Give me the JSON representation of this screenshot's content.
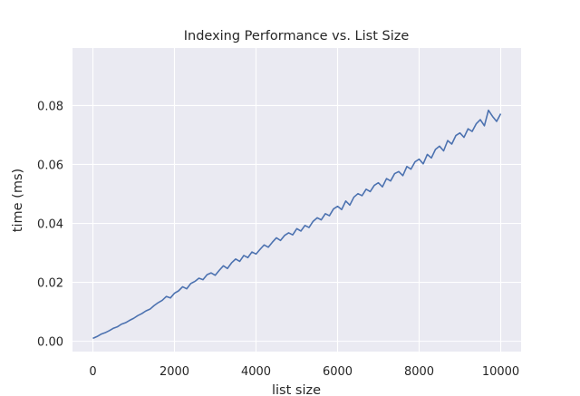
{
  "chart_data": {
    "type": "line",
    "title": "Indexing Performance vs. List Size",
    "xlabel": "list size",
    "ylabel": "time (ms)",
    "xlim": [
      -500,
      10500
    ],
    "ylim": [
      -0.0035,
      0.0995
    ],
    "xticks": [
      0,
      2000,
      4000,
      6000,
      8000,
      10000
    ],
    "xtick_labels": [
      "0",
      "2000",
      "4000",
      "6000",
      "8000",
      "10000"
    ],
    "yticks": [
      0.0,
      0.02,
      0.04,
      0.06,
      0.08
    ],
    "ytick_labels": [
      "0.00",
      "0.02",
      "0.04",
      "0.06",
      "0.08"
    ],
    "grid": true,
    "legend": false,
    "colors": {
      "line": "#4c72b0",
      "plot_background": "#eaeaf2",
      "grid": "#ffffff"
    },
    "series": [
      {
        "x": [
          0,
          100,
          200,
          300,
          400,
          500,
          600,
          700,
          800,
          900,
          1000,
          1100,
          1200,
          1300,
          1400,
          1500,
          1600,
          1700,
          1800,
          1900,
          2000,
          2100,
          2200,
          2300,
          2400,
          2500,
          2600,
          2700,
          2800,
          2900,
          3000,
          3100,
          3200,
          3300,
          3400,
          3500,
          3600,
          3700,
          3800,
          3900,
          4000,
          4100,
          4200,
          4300,
          4400,
          4500,
          4600,
          4700,
          4800,
          4900,
          5000,
          5100,
          5200,
          5300,
          5400,
          5500,
          5600,
          5700,
          5800,
          5900,
          6000,
          6100,
          6200,
          6300,
          6400,
          6500,
          6600,
          6700,
          6800,
          6900,
          7000,
          7100,
          7200,
          7300,
          7400,
          7500,
          7600,
          7700,
          7800,
          7900,
          8000,
          8100,
          8200,
          8300,
          8400,
          8500,
          8600,
          8700,
          8800,
          8900,
          9000,
          9100,
          9200,
          9300,
          9400,
          9500,
          9600,
          9700,
          9800,
          9900,
          10000
        ],
        "values": [
          0.001,
          0.0016,
          0.0024,
          0.0029,
          0.0036,
          0.0044,
          0.0049,
          0.0058,
          0.0063,
          0.0071,
          0.0078,
          0.0087,
          0.0094,
          0.0103,
          0.0109,
          0.0121,
          0.0131,
          0.0139,
          0.0152,
          0.0147,
          0.0163,
          0.0171,
          0.0185,
          0.0178,
          0.0196,
          0.0203,
          0.0214,
          0.0209,
          0.0226,
          0.0232,
          0.0224,
          0.0241,
          0.0256,
          0.0247,
          0.0266,
          0.0279,
          0.0271,
          0.0291,
          0.0284,
          0.0303,
          0.0296,
          0.0312,
          0.0327,
          0.0319,
          0.0336,
          0.0351,
          0.0342,
          0.0359,
          0.0368,
          0.0361,
          0.0382,
          0.0374,
          0.0393,
          0.0386,
          0.0407,
          0.0419,
          0.0412,
          0.0433,
          0.0426,
          0.0449,
          0.0458,
          0.0447,
          0.0476,
          0.0462,
          0.0489,
          0.0501,
          0.0494,
          0.0516,
          0.0508,
          0.0529,
          0.0538,
          0.0524,
          0.0552,
          0.0544,
          0.0569,
          0.0576,
          0.0562,
          0.0593,
          0.0584,
          0.0609,
          0.0618,
          0.0602,
          0.0634,
          0.0622,
          0.0651,
          0.0662,
          0.0646,
          0.0681,
          0.0669,
          0.0698,
          0.0707,
          0.0692,
          0.0721,
          0.0712,
          0.0738,
          0.0752,
          0.0731,
          0.0784,
          0.0763,
          0.0746,
          0.0772
        ]
      }
    ]
  }
}
